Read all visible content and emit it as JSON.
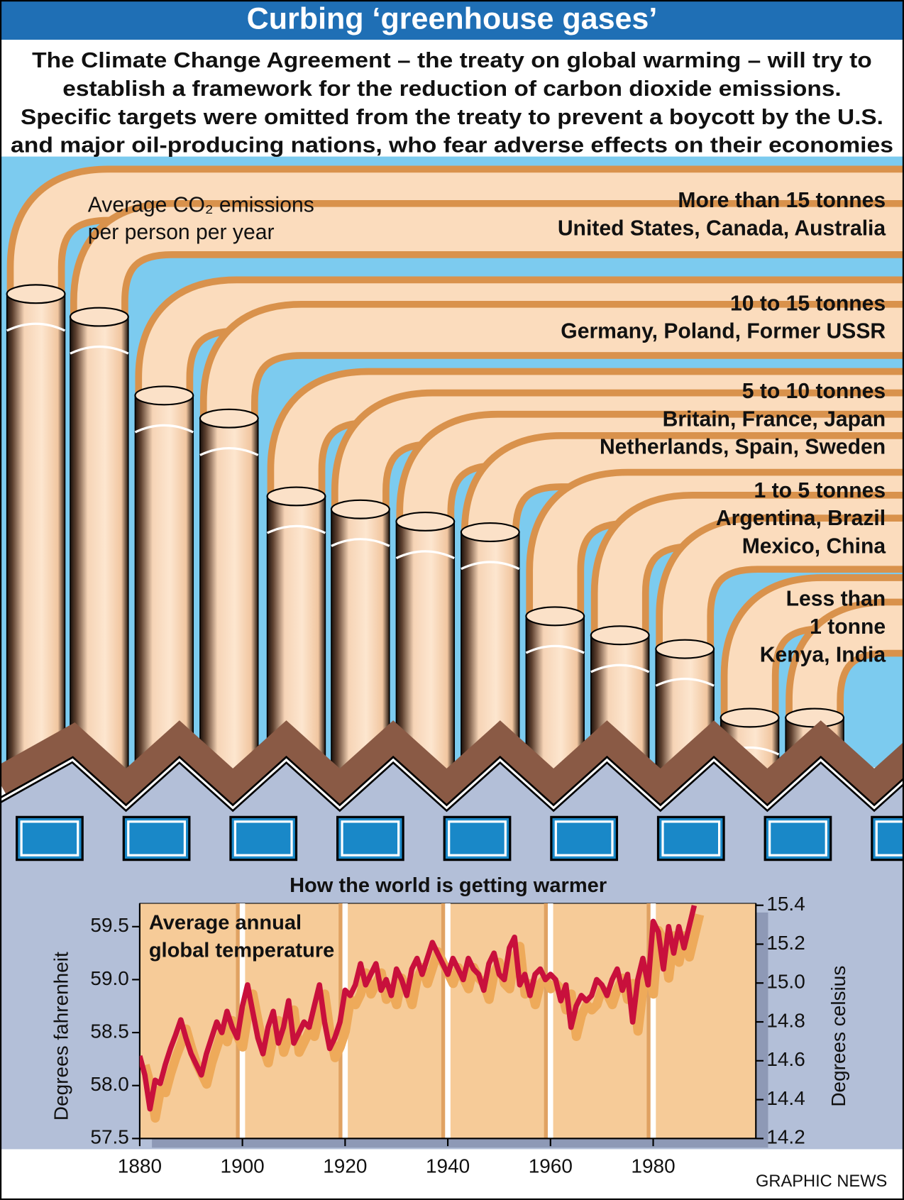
{
  "title": "Curbing ‘greenhouse gases’",
  "intro": [
    "The Climate Change Agreement – the treaty on global warming – will try to",
    "establish a framework for the reduction of carbon dioxide emissions.",
    "Specific targets were omitted from the treaty to prevent a boycott by the U.S.",
    "and major oil-producing nations, who fear adverse effects on their economies"
  ],
  "emissions_label": [
    "Average CO₂ emissions",
    "per person per year"
  ],
  "bands": [
    {
      "lines": [
        "More than 15 tonnes",
        "United States, Canada, Australia"
      ]
    },
    {
      "lines": [
        "10 to 15 tonnes",
        "Germany, Poland, Former USSR"
      ]
    },
    {
      "lines": [
        "5 to 10 tonnes",
        "Britain, France, Japan",
        "Netherlands, Spain, Sweden"
      ]
    },
    {
      "lines": [
        "1 to 5 tonnes",
        "Argentina, Brazil",
        "Mexico, China"
      ]
    },
    {
      "lines": [
        "Less than",
        "1 tonne",
        "Kenya, India"
      ]
    }
  ],
  "source": "GRAPHIC NEWS",
  "chart_data": {
    "type": "line",
    "title": "How the world is getting warmer",
    "annotation": [
      "Average annual",
      "global temperature"
    ],
    "y_label": "Degrees fahrenheit",
    "y2_label": "Degrees celsius",
    "x": [
      1880,
      1881,
      1882,
      1883,
      1884,
      1885,
      1886,
      1887,
      1888,
      1889,
      1890,
      1891,
      1892,
      1893,
      1894,
      1895,
      1896,
      1897,
      1898,
      1899,
      1900,
      1901,
      1902,
      1903,
      1904,
      1905,
      1906,
      1907,
      1908,
      1909,
      1910,
      1911,
      1912,
      1913,
      1914,
      1915,
      1916,
      1917,
      1918,
      1919,
      1920,
      1921,
      1922,
      1923,
      1924,
      1925,
      1926,
      1927,
      1928,
      1929,
      1930,
      1931,
      1932,
      1933,
      1934,
      1935,
      1936,
      1937,
      1938,
      1939,
      1940,
      1941,
      1942,
      1943,
      1944,
      1945,
      1946,
      1947,
      1948,
      1949,
      1950,
      1951,
      1952,
      1953,
      1954,
      1955,
      1956,
      1957,
      1958,
      1959,
      1960,
      1961,
      1962,
      1963,
      1964,
      1965,
      1966,
      1967,
      1968,
      1969,
      1970,
      1971,
      1972,
      1973,
      1974,
      1975,
      1976,
      1977,
      1978,
      1979,
      1980,
      1981,
      1982,
      1983,
      1984,
      1985,
      1986,
      1987,
      1988
    ],
    "series": [
      {
        "color": "#c8103c",
        "shadow_color": "#eeaa5a",
        "values": [
          58.28,
          58.1,
          57.78,
          58.05,
          58.02,
          58.2,
          58.35,
          58.48,
          58.62,
          58.45,
          58.3,
          58.2,
          58.1,
          58.3,
          58.45,
          58.6,
          58.5,
          58.7,
          58.55,
          58.45,
          58.75,
          58.95,
          58.7,
          58.45,
          58.3,
          58.55,
          58.7,
          58.4,
          58.55,
          58.8,
          58.4,
          58.5,
          58.6,
          58.55,
          58.75,
          58.95,
          58.6,
          58.35,
          58.45,
          58.6,
          58.9,
          58.85,
          58.95,
          59.15,
          58.95,
          59.05,
          59.15,
          58.9,
          59.0,
          58.85,
          59.1,
          59.0,
          58.85,
          59.1,
          59.2,
          59.05,
          59.2,
          59.35,
          59.25,
          59.15,
          59.05,
          59.2,
          59.1,
          59.0,
          59.2,
          59.1,
          59.05,
          58.9,
          59.15,
          59.25,
          59.05,
          59.0,
          59.3,
          59.4,
          58.95,
          59.05,
          58.85,
          59.05,
          59.1,
          59.0,
          59.05,
          59.0,
          58.8,
          58.95,
          58.55,
          58.75,
          58.85,
          58.8,
          58.85,
          59.0,
          58.95,
          58.85,
          59.0,
          59.1,
          58.9,
          59.05,
          58.6,
          59.0,
          59.2,
          58.95,
          59.55,
          59.45,
          59.1,
          59.5,
          59.25,
          59.5,
          59.3,
          59.5,
          59.7
        ]
      }
    ],
    "xlim": [
      1880,
      2000
    ],
    "xticks": [
      1880,
      1900,
      1920,
      1940,
      1960,
      1980
    ],
    "ylim": [
      57.5,
      59.72
    ],
    "yticks": [
      57.5,
      {
        "value": 58.0,
        "label": "58.0"
      },
      58.5,
      {
        "value": 59.0,
        "label": "59.0"
      },
      59.5
    ],
    "y2lim": [
      14.2,
      15.41
    ],
    "y2ticks": [
      14.2,
      14.4,
      14.6,
      14.8,
      {
        "value": 15.0,
        "label": "15.0"
      },
      15.2,
      15.4
    ],
    "grid": true,
    "plot_color": "#f6cb98"
  }
}
